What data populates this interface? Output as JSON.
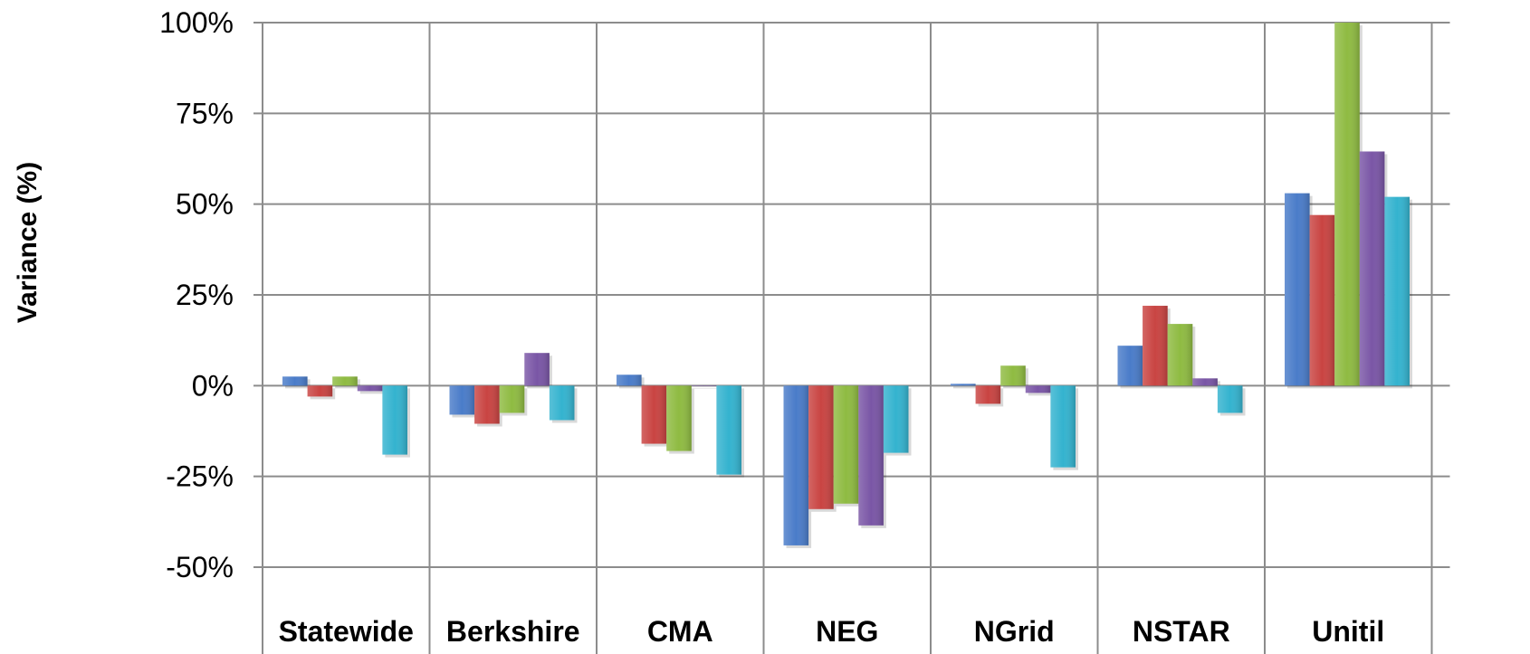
{
  "chart_data": {
    "type": "bar",
    "title": "",
    "xlabel": "",
    "ylabel": "Variance (%)",
    "ylim": [
      -50,
      100
    ],
    "grid": true,
    "legend": "none",
    "categories": [
      "Statewide",
      "Berkshire",
      "CMA",
      "NEG",
      "NGrid",
      "NSTAR",
      "Unitil"
    ],
    "y_ticks": [
      "100%",
      "75%",
      "50%",
      "25%",
      "0%",
      "-25%",
      "-50%"
    ],
    "series": [
      {
        "color": "#4a7cc9",
        "values": [
          2.5,
          -8,
          3,
          -44,
          0.5,
          11,
          53
        ]
      },
      {
        "color": "#c94442",
        "values": [
          -3,
          -10.5,
          -16,
          -34,
          -5,
          22,
          47
        ]
      },
      {
        "color": "#8fbb42",
        "values": [
          2.5,
          -7.5,
          -18,
          -32.5,
          5.5,
          17,
          100
        ]
      },
      {
        "color": "#7a56a6",
        "values": [
          -1.5,
          9,
          0,
          -38.5,
          -2,
          2,
          64.5
        ]
      },
      {
        "color": "#34b3cf",
        "values": [
          -19,
          -9.5,
          -24.5,
          -18.5,
          -22.5,
          -7.5,
          52
        ]
      }
    ]
  }
}
